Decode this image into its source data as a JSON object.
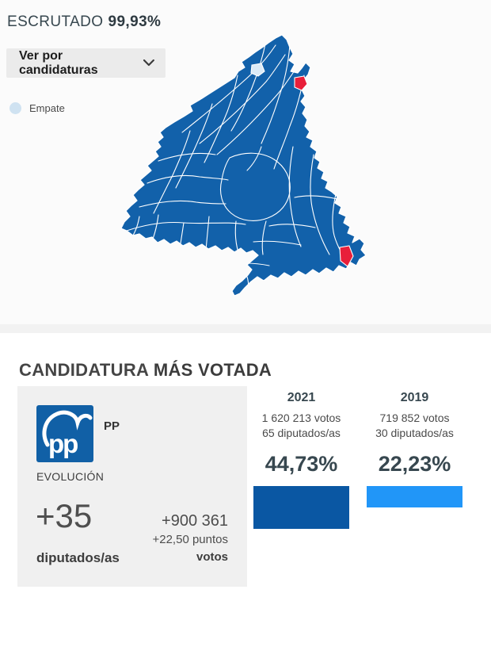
{
  "header": {
    "escrutado_label": "ESCRUTADO",
    "escrutado_value": "99,93%"
  },
  "controls": {
    "view_dropdown_label": "Ver por candidaturas"
  },
  "map": {
    "name": "Mapa de municipios de la Comunidad de Madrid",
    "legend": {
      "empate_label": "Empate",
      "empate_color": "#cfe2f1"
    },
    "majority_color": "#1261aa",
    "other_party_color": "#e81f3a",
    "tie_municipality_color": "#dcebf7",
    "border_color": "#ffffff"
  },
  "section": {
    "title_regular": "CANDIDATURA",
    "title_bold": "MÁS VOTADA"
  },
  "party": {
    "name": "PP",
    "logo_text": "pp",
    "logo_color": "#1160a6"
  },
  "evolution": {
    "title": "EVOLUCIÓN",
    "seats_delta": "+35",
    "seats_label": "diputados/as",
    "votes_delta": "+900 361",
    "points_delta": "+22,50 puntos",
    "votes_label": "votos"
  },
  "chart_data": {
    "type": "bar",
    "title": "CANDIDATURA MÁS VOTADA — PP",
    "categories": [
      "2021",
      "2019"
    ],
    "series": [
      {
        "name": "% voto PP",
        "values": [
          44.73,
          22.23
        ]
      }
    ],
    "ylim": [
      0,
      50
    ],
    "legend_position": "none",
    "years": [
      {
        "year": "2021",
        "votes": 1620213,
        "votes_label": "1 620 213 votos",
        "seats": 65,
        "seats_label": "65 diputados/as",
        "pct": 44.73,
        "pct_label": "44,73%",
        "bar_color": "#0a57a3"
      },
      {
        "year": "2019",
        "votes": 719852,
        "votes_label": "719 852 votos",
        "seats": 30,
        "seats_label": "30 diputados/as",
        "pct": 22.23,
        "pct_label": "22,23%",
        "bar_color": "#2196f8"
      }
    ]
  }
}
